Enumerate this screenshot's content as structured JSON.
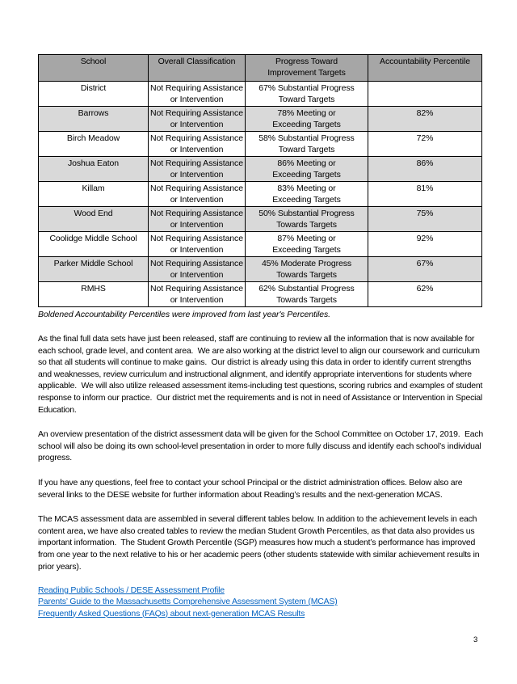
{
  "page": {
    "number": "3"
  },
  "colors": {
    "header_bg": "#a6a6a6",
    "row_shaded_bg": "#d9d9d9",
    "link_color": "#0563c1"
  },
  "table": {
    "headers": [
      [
        "School"
      ],
      [
        "Overall Classification"
      ],
      [
        "Progress Toward",
        "Improvement Targets"
      ],
      [
        "Accountability Percentile"
      ]
    ],
    "rows": [
      {
        "school": "District",
        "classification": [
          "Not Requiring Assistance",
          "or Intervention"
        ],
        "progress": [
          "67% Substantial Progress",
          "Toward Targets"
        ],
        "percentile": "",
        "shaded": false
      },
      {
        "school": "Barrows",
        "classification": [
          "Not Requiring Assistance",
          "or Intervention"
        ],
        "progress": [
          "78% Meeting or",
          "Exceeding Targets"
        ],
        "percentile": "82%",
        "shaded": true
      },
      {
        "school": "Birch Meadow",
        "classification": [
          "Not Requiring Assistance",
          "or Intervention"
        ],
        "progress": [
          "58% Substantial Progress",
          "Toward Targets"
        ],
        "percentile": "72%",
        "shaded": false
      },
      {
        "school": "Joshua Eaton",
        "classification": [
          "Not Requiring Assistance",
          "or Intervention"
        ],
        "progress": [
          "86% Meeting or",
          "Exceeding Targets"
        ],
        "percentile": "86%",
        "shaded": true
      },
      {
        "school": "Killam",
        "classification": [
          "Not Requiring Assistance",
          "or Intervention"
        ],
        "progress": [
          "83% Meeting or",
          "Exceeding Targets"
        ],
        "percentile": "81%",
        "shaded": false
      },
      {
        "school": "Wood End",
        "classification": [
          "Not Requiring Assistance",
          "or Intervention"
        ],
        "progress": [
          "50% Substantial Progress",
          "Towards Targets"
        ],
        "percentile": "75%",
        "shaded": true
      },
      {
        "school": "Coolidge Middle School",
        "classification": [
          "Not Requiring Assistance",
          "or Intervention"
        ],
        "progress": [
          "87% Meeting or",
          "Exceeding Targets"
        ],
        "percentile": "92%",
        "shaded": false
      },
      {
        "school": "Parker Middle School",
        "classification": [
          "Not Requiring Assistance",
          "or Intervention"
        ],
        "progress": [
          "45% Moderate Progress",
          "Towards Targets"
        ],
        "percentile": "67%",
        "shaded": true
      },
      {
        "school": "RMHS",
        "classification": [
          "Not Requiring Assistance",
          "or Intervention"
        ],
        "progress": [
          "62% Substantial Progress",
          "Towards Targets"
        ],
        "percentile": "62%",
        "shaded": false
      }
    ],
    "caption": "Boldened Accountability Percentiles were improved from last year's Percentiles."
  },
  "paragraphs": [
    "As the final full data sets have just been released, staff are continuing to review all the information that is now available for each school, grade level, and content area.  We are also working at the district level to align our coursework and curriculum so that all students will continue to make gains.  Our district is already using this data in order to identify current strengths and weaknesses, review curriculum and instructional alignment, and identify appropriate interventions for students where applicable.  We will also utilize released assessment items-including test questions, scoring rubrics and examples of student response to inform our practice.  Our district met the requirements and is not in need of Assistance or Intervention in Special Education.",
    "An overview presentation of the district assessment data will be given for the School Committee on October 17, 2019.  Each school will also be doing its own school-level presentation in order to more fully discuss and identify each school’s individual progress.",
    "If you have any questions, feel free to contact your school Principal or the district administration offices. Below also are several links to the DESE website for further information about Reading’s results and the next-generation MCAS.",
    "The MCAS assessment data are assembled in several different tables below. In addition to the achievement levels in each content area, we have also created tables to review the median Student Growth Percentiles, as that data also provides us important information.  The Student Growth Percentile (SGP) measures how much a student’s performance has improved from one year to the next relative to his or her academic peers (other students statewide with similar achievement results in prior years)."
  ],
  "links": [
    "Reading Public Schools / DESE Assessment Profile",
    "Parents’ Guide to the Massachusetts Comprehensive Assessment System (MCAS)",
    "Frequently Asked Questions (FAQs) about next-generation MCAS Results"
  ]
}
